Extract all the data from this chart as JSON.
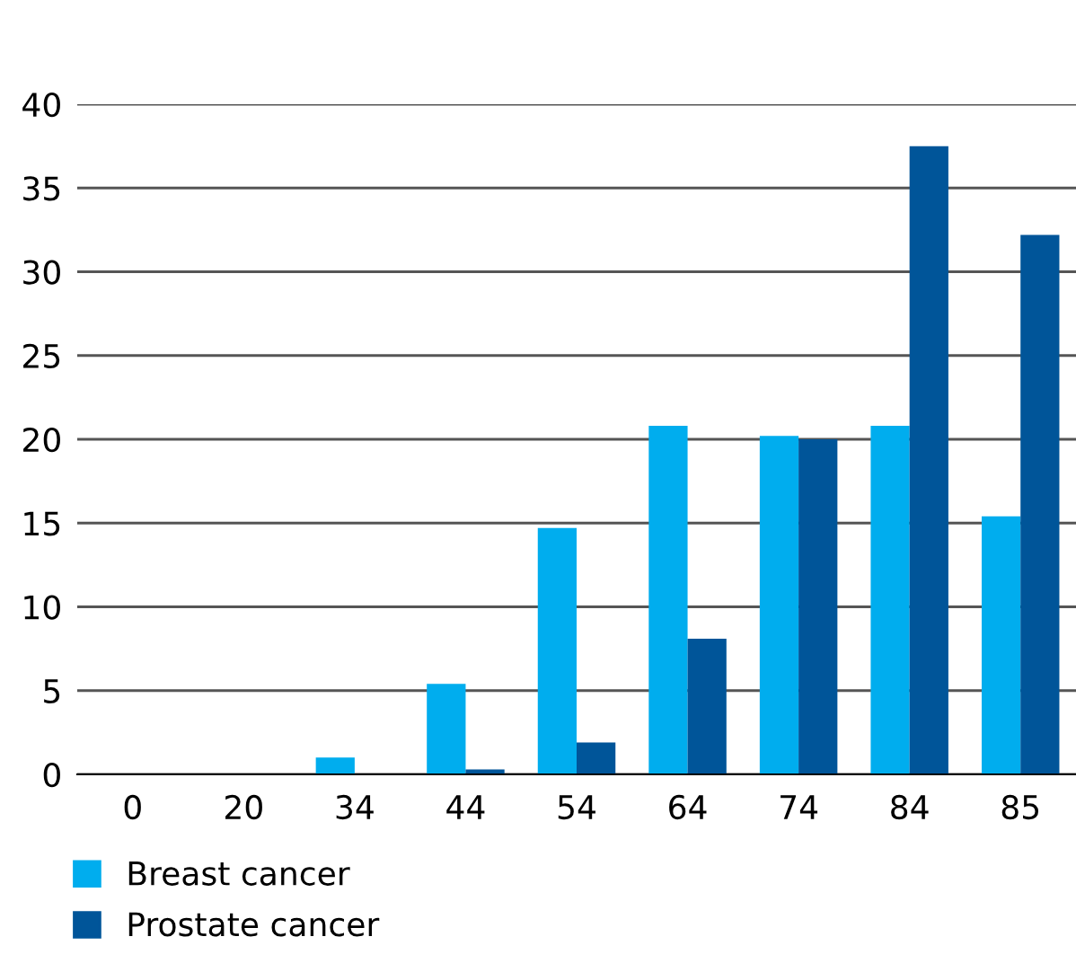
{
  "chart_data": {
    "type": "bar",
    "categories": [
      "0",
      "20",
      "34",
      "44",
      "54",
      "64",
      "74",
      "84",
      "85"
    ],
    "series": [
      {
        "name": "Breast cancer",
        "color": "#00adee",
        "values": [
          0,
          0,
          1.0,
          5.4,
          14.7,
          20.8,
          20.2,
          20.8,
          15.4
        ]
      },
      {
        "name": "Prostate cancer",
        "color": "#005599",
        "values": [
          0,
          0,
          0,
          0.3,
          1.9,
          8.1,
          20.0,
          37.5,
          32.2
        ]
      }
    ],
    "ylim": [
      0,
      40
    ],
    "yticks": [
      0,
      5,
      10,
      15,
      20,
      25,
      30,
      35,
      40
    ],
    "grid": "y",
    "legend": "bottom left"
  }
}
